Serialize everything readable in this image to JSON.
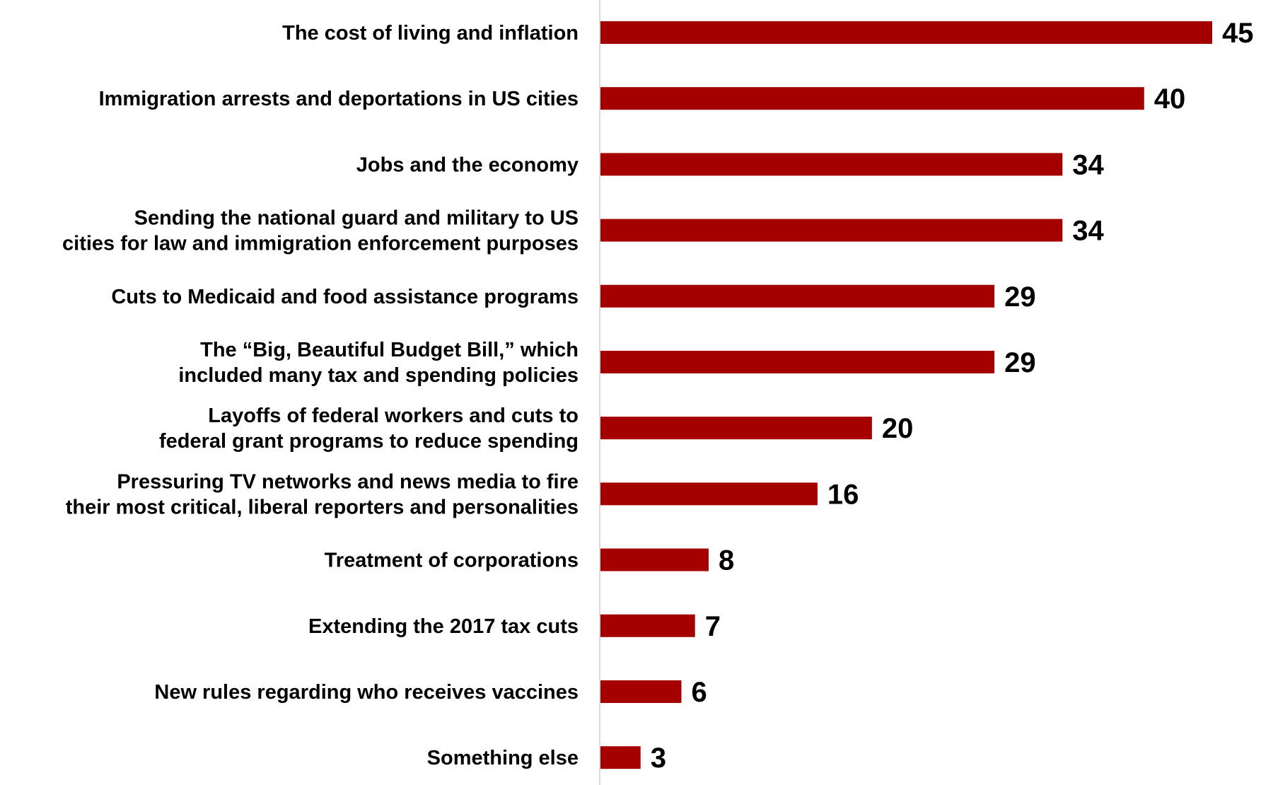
{
  "chart_data": {
    "type": "bar",
    "orientation": "horizontal",
    "title": "",
    "xlabel": "",
    "ylabel": "",
    "xlim": [
      0,
      45
    ],
    "grid": false,
    "legend": "none",
    "bar_color": "#a50000",
    "axis_color": "#d9d9d9",
    "categories": [
      [
        "The cost of living and inflation"
      ],
      [
        "Immigration arrests and deportations in US cities"
      ],
      [
        "Jobs and the economy"
      ],
      [
        "Sending the national guard and military to US",
        "cities for law and immigration enforcement purposes"
      ],
      [
        "Cuts to Medicaid and food assistance programs"
      ],
      [
        "The “Big, Beautiful Budget Bill,” which",
        "included many tax and spending policies"
      ],
      [
        "Layoffs of federal workers and cuts to",
        "federal grant programs to reduce spending"
      ],
      [
        "Pressuring TV networks and news media to fire",
        "their most critical, liberal reporters and personalities"
      ],
      [
        "Treatment of corporations"
      ],
      [
        "Extending the 2017 tax cuts"
      ],
      [
        "New rules regarding who receives vaccines"
      ],
      [
        "Something else"
      ]
    ],
    "values": [
      45,
      40,
      34,
      34,
      29,
      29,
      20,
      16,
      8,
      7,
      6,
      3
    ],
    "value_labels": [
      "45",
      "40",
      "34",
      "34",
      "29",
      "29",
      "20",
      "16",
      "8",
      "7",
      "6",
      "3"
    ]
  }
}
